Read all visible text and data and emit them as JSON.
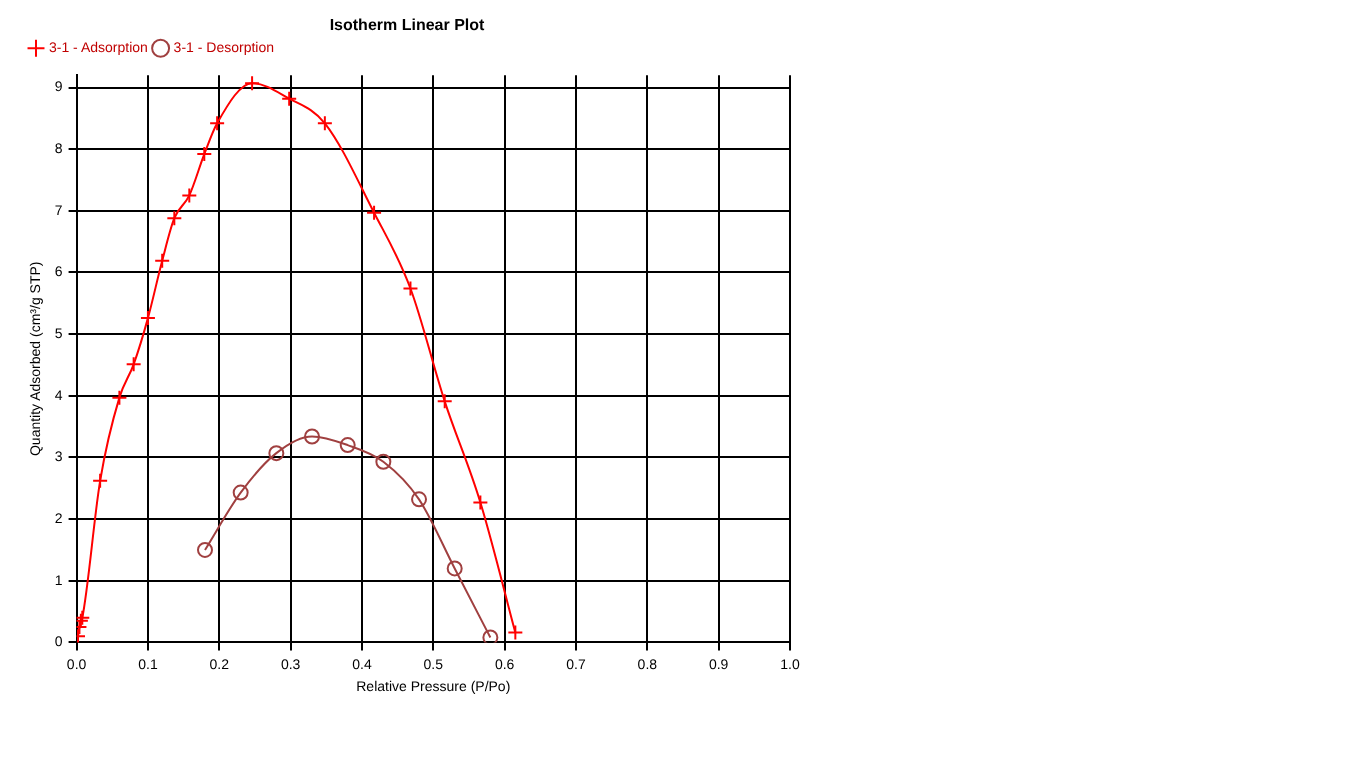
{
  "chart_data": {
    "type": "line",
    "title": "Isotherm Linear Plot",
    "xlabel": "Relative Pressure (P/Po)",
    "ylabel": "Quantity Adsorbed (cm³/g STP)",
    "xlim": [
      0,
      1
    ],
    "xticks": [
      {
        "value": 0,
        "label": "0.0"
      },
      0.1,
      0.2,
      0.3,
      0.4,
      0.5,
      0.6,
      0.7,
      0.8,
      0.9,
      {
        "value": 1,
        "label": "1.0"
      }
    ],
    "ylim": [
      0,
      9.2
    ],
    "yticks": [
      0,
      1,
      2,
      3,
      4,
      5,
      6,
      7,
      8,
      9
    ],
    "grid": true,
    "legend": "top left",
    "series": [
      {
        "name": "3-1 - Adsorption",
        "color": "#ff0000",
        "marker": "cross",
        "x": [
          0.002,
          0.004,
          0.006,
          0.008,
          0.033,
          0.06,
          0.08,
          0.1,
          0.12,
          0.137,
          0.158,
          0.179,
          0.197,
          0.246,
          0.298,
          0.348,
          0.417,
          0.468,
          0.516,
          0.566,
          0.615
        ],
        "values": [
          0.1,
          0.25,
          0.35,
          0.4,
          2.62,
          3.97,
          4.51,
          5.26,
          6.19,
          6.88,
          7.25,
          7.92,
          8.42,
          9.07,
          8.82,
          8.42,
          6.97,
          5.74,
          3.91,
          2.27,
          0.16
        ]
      },
      {
        "name": "3-1 - Desorption",
        "color": "#a04040",
        "marker": "circle",
        "x": [
          0.18,
          0.23,
          0.28,
          0.33,
          0.38,
          0.43,
          0.48,
          0.53,
          0.58
        ],
        "values": [
          1.5,
          2.43,
          3.07,
          3.34,
          3.2,
          2.93,
          2.32,
          1.2,
          0.08
        ]
      }
    ]
  }
}
